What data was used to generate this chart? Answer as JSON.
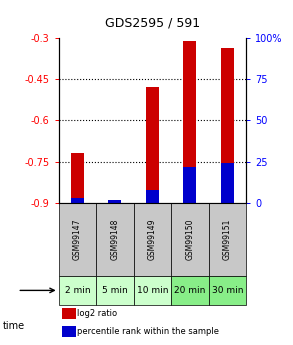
{
  "title": "GDS2595 / 591",
  "samples": [
    "GSM99147",
    "GSM99148",
    "GSM99149",
    "GSM99150",
    "GSM99151"
  ],
  "time_labels": [
    "2 min",
    "5 min",
    "10 min",
    "20 min",
    "30 min"
  ],
  "log2_values": [
    -0.72,
    -0.895,
    -0.48,
    -0.31,
    -0.335
  ],
  "percentile_values": [
    3,
    2,
    8,
    22,
    24
  ],
  "left_ylim": [
    -0.9,
    -0.3
  ],
  "right_ylim": [
    0,
    100
  ],
  "left_yticks": [
    -0.9,
    -0.75,
    -0.6,
    -0.45,
    -0.3
  ],
  "right_yticks": [
    0,
    25,
    50,
    75,
    100
  ],
  "bar_width": 0.35,
  "red_color": "#cc0000",
  "blue_color": "#0000cc",
  "sample_bg": "#c8c8c8",
  "time_bg_light": "#ccffcc",
  "time_bg_dark": "#88ee88",
  "legend_red": "log2 ratio",
  "legend_blue": "percentile rank within the sample",
  "grid_yticks": [
    -0.75,
    -0.6,
    -0.45
  ],
  "title_fontsize": 9,
  "tick_fontsize": 7,
  "sample_fontsize": 5.5,
  "time_fontsize": 6.5
}
